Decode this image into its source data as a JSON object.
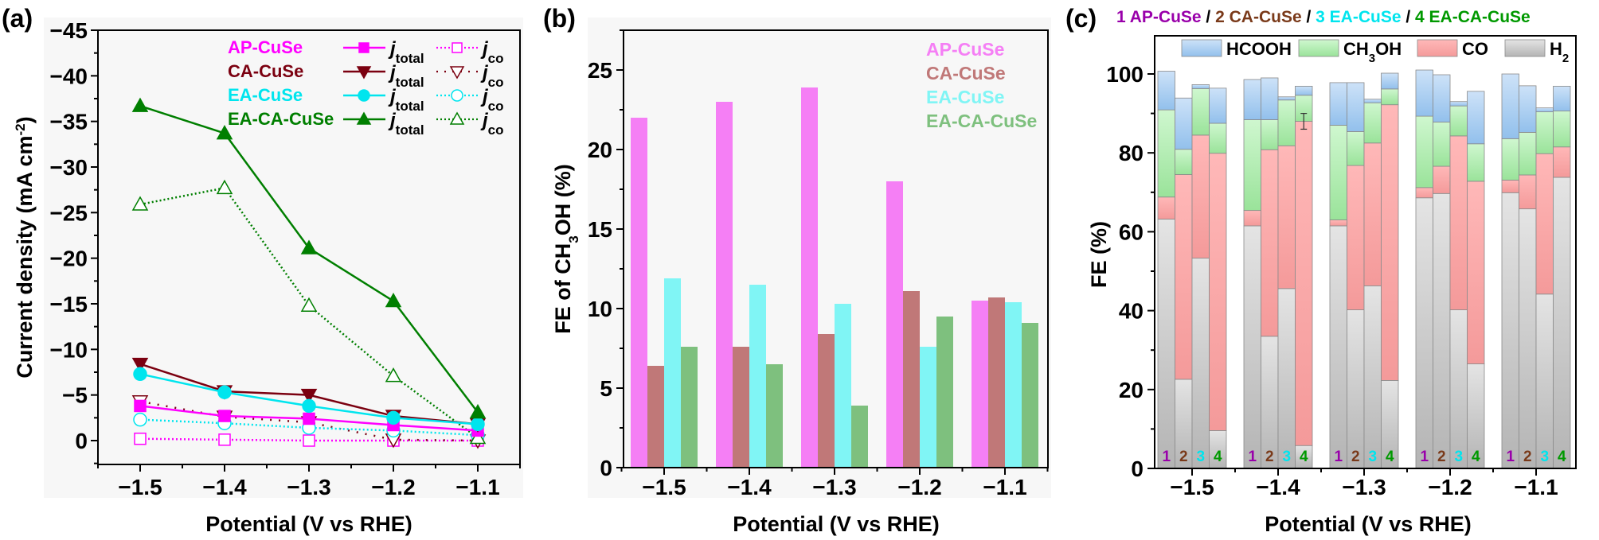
{
  "colors": {
    "ap": "#ff00ff",
    "ca": "#7b0010",
    "ea": "#00e5ee",
    "eaca": "#007f00",
    "bar_ap": "#f57ff5",
    "bar_ca": "#c07878",
    "bar_ea": "#80f5f5",
    "bar_eaca": "#7ec07e",
    "label_1": "#9900aa",
    "label_2": "#7a3a1a",
    "label_3": "#00e5ee",
    "label_4": "#009900"
  },
  "chart_data": [
    {
      "panel": "(a)",
      "type": "line",
      "xlabel": "Potential (V vs RHE)",
      "ylabel": "Current density (mA cm⁻²)",
      "ylabel_main": "Current density (mA cm",
      "ylabel_sup": "-2",
      "ylabel_end": ")",
      "x": [
        -1.5,
        -1.4,
        -1.3,
        -1.2,
        -1.1
      ],
      "xticks": [
        "−1.5",
        "−1.4",
        "−1.3",
        "−1.2",
        "−1.1"
      ],
      "xlim": [
        -1.55,
        -1.05
      ],
      "ylim": [
        -45,
        0
      ],
      "yaxis_inverted": true,
      "yticks": [
        "−45",
        "−40",
        "−35",
        "−30",
        "−25",
        "−20",
        "−15",
        "−10",
        "−5",
        "0"
      ],
      "ytick_values": [
        -45,
        -40,
        -35,
        -30,
        -25,
        -20,
        -15,
        -10,
        -5,
        0
      ],
      "legend_samples": [
        "AP-CuSe",
        "CA-CuSe",
        "EA-CuSe",
        "EA-CA-CuSe"
      ],
      "legend_total": "total",
      "legend_co": "co",
      "legend_j": "j",
      "series": [
        {
          "name": "AP-CuSe j_total",
          "sample": "ap",
          "kind": "total",
          "marker": "square",
          "values": [
            -3.8,
            -2.7,
            -2.4,
            -1.7,
            -1.1
          ]
        },
        {
          "name": "AP-CuSe j_co",
          "sample": "ap",
          "kind": "co",
          "marker": "square",
          "values": [
            -0.2,
            -0.1,
            0.0,
            0.0,
            0.0
          ]
        },
        {
          "name": "CA-CuSe j_total",
          "sample": "ca",
          "kind": "total",
          "marker": "tri-down",
          "values": [
            -8.4,
            -5.4,
            -5.0,
            -2.7,
            -1.8
          ]
        },
        {
          "name": "CA-CuSe j_co",
          "sample": "ca",
          "kind": "co",
          "marker": "tri-down",
          "values": [
            -4.3,
            -2.6,
            -2.0,
            -0.1,
            0.0
          ]
        },
        {
          "name": "EA-CuSe j_total",
          "sample": "ea",
          "kind": "total",
          "marker": "circle",
          "values": [
            -7.3,
            -5.3,
            -3.8,
            -2.5,
            -1.8
          ]
        },
        {
          "name": "EA-CuSe j_co",
          "sample": "ea",
          "kind": "co",
          "marker": "circle",
          "values": [
            -2.3,
            -1.9,
            -1.4,
            -1.1,
            -0.6
          ]
        },
        {
          "name": "EA-CA-CuSe j_total",
          "sample": "eaca",
          "kind": "total",
          "marker": "tri-up",
          "values": [
            -36.7,
            -33.7,
            -21.1,
            -15.3,
            -3.1
          ]
        },
        {
          "name": "EA-CA-CuSe j_co",
          "sample": "eaca",
          "kind": "co",
          "marker": "tri-up",
          "values": [
            -25.9,
            -27.7,
            -14.8,
            -7.1,
            -0.3
          ]
        }
      ]
    },
    {
      "panel": "(b)",
      "type": "bar",
      "xlabel": "Potential (V vs RHE)",
      "ylabel_pre": "FE of CH",
      "ylabel_sub": "3",
      "ylabel_post": "OH  (%)",
      "categories": [
        "−1.5",
        "−1.4",
        "−1.3",
        "−1.2",
        "−1.1"
      ],
      "ylim": [
        0,
        27.5
      ],
      "yticks": [
        "0",
        "5",
        "10",
        "15",
        "20",
        "25"
      ],
      "ytick_values": [
        0,
        5,
        10,
        15,
        20,
        25
      ],
      "legend": [
        "AP-CuSe",
        "CA-CuSe",
        "EA-CuSe",
        "EA-CA-CuSe"
      ],
      "series": [
        {
          "name": "AP-CuSe",
          "key": "ap",
          "values": [
            22.0,
            23.0,
            23.9,
            18.0,
            10.5
          ]
        },
        {
          "name": "CA-CuSe",
          "key": "ca",
          "values": [
            6.4,
            7.6,
            8.4,
            11.1,
            10.7
          ]
        },
        {
          "name": "EA-CuSe",
          "key": "ea",
          "values": [
            11.9,
            11.5,
            10.3,
            7.6,
            10.4
          ]
        },
        {
          "name": "EA-CA-CuSe",
          "key": "eaca",
          "values": [
            7.6,
            6.5,
            3.9,
            9.5,
            9.1
          ]
        }
      ]
    },
    {
      "panel": "(c)",
      "type": "bar",
      "stacked": true,
      "xlabel": "Potential (V vs RHE)",
      "ylabel": "FE (%)",
      "categories": [
        "−1.5",
        "−1.4",
        "−1.3",
        "−1.2",
        "−1.1"
      ],
      "ylim": [
        0,
        109
      ],
      "yticks": [
        "0",
        "20",
        "40",
        "60",
        "80",
        "100"
      ],
      "ytick_values": [
        0,
        20,
        40,
        60,
        80,
        100
      ],
      "header": [
        {
          "text": "1 AP-CuSe",
          "key": "label_1"
        },
        {
          "text": " / ",
          "key": "black"
        },
        {
          "text": "2 CA-CuSe",
          "key": "label_2"
        },
        {
          "text": " / ",
          "key": "black"
        },
        {
          "text": "3 EA-CuSe",
          "key": "label_3"
        },
        {
          "text": " / ",
          "key": "black"
        },
        {
          "text": "4 EA-CA-CuSe",
          "key": "label_4"
        }
      ],
      "sample_labels": [
        "1",
        "2",
        "3",
        "4"
      ],
      "legend": [
        {
          "name": "HCOOH",
          "key": "hcooh"
        },
        {
          "name": "CH3OH",
          "key": "ch3oh",
          "main": "CH",
          "sub": "3",
          "post": "OH"
        },
        {
          "name": "CO",
          "key": "co"
        },
        {
          "name": "H2",
          "key": "h2",
          "main": "H",
          "sub": "2"
        }
      ],
      "products": [
        "H2",
        "CO",
        "CH3OH",
        "HCOOH"
      ],
      "groups": [
        {
          "potential": "−1.5",
          "samples": [
            {
              "H2": 63.2,
              "CO": 5.6,
              "CH3OH": 22.1,
              "HCOOH": 9.8
            },
            {
              "H2": 22.6,
              "CO": 51.9,
              "CH3OH": 6.4,
              "HCOOH": 13.0
            },
            {
              "H2": 53.3,
              "CO": 31.2,
              "CH3OH": 11.8,
              "HCOOH": 1.0
            },
            {
              "H2": 9.6,
              "CO": 70.3,
              "CH3OH": 7.6,
              "HCOOH": 8.9
            }
          ]
        },
        {
          "potential": "−1.4",
          "samples": [
            {
              "H2": 61.5,
              "CO": 3.9,
              "CH3OH": 23.0,
              "HCOOH": 10.2
            },
            {
              "H2": 33.5,
              "CO": 47.3,
              "CH3OH": 7.6,
              "HCOOH": 10.6
            },
            {
              "H2": 45.6,
              "CO": 36.2,
              "CH3OH": 11.6,
              "HCOOH": 0.8
            },
            {
              "H2": 5.8,
              "CO": 82.2,
              "CH3OH": 6.6,
              "HCOOH": 2.3
            }
          ]
        },
        {
          "potential": "−1.3",
          "samples": [
            {
              "H2": 61.5,
              "CO": 1.5,
              "CH3OH": 24.0,
              "HCOOH": 10.8
            },
            {
              "H2": 40.2,
              "CO": 36.6,
              "CH3OH": 8.6,
              "HCOOH": 12.4
            },
            {
              "H2": 46.3,
              "CO": 36.2,
              "CH3OH": 10.2,
              "HCOOH": 0.9
            },
            {
              "H2": 22.3,
              "CO": 69.9,
              "CH3OH": 4.0,
              "HCOOH": 4.0
            }
          ]
        },
        {
          "potential": "−1.2",
          "samples": [
            {
              "H2": 68.6,
              "CO": 2.6,
              "CH3OH": 18.1,
              "HCOOH": 11.7
            },
            {
              "H2": 69.7,
              "CO": 6.9,
              "CH3OH": 11.2,
              "HCOOH": 12.0
            },
            {
              "H2": 40.2,
              "CO": 44.1,
              "CH3OH": 7.6,
              "HCOOH": 1.1
            },
            {
              "H2": 26.5,
              "CO": 46.3,
              "CH3OH": 9.5,
              "HCOOH": 13.3
            }
          ]
        },
        {
          "potential": "−1.1",
          "samples": [
            {
              "H2": 69.9,
              "CO": 3.2,
              "CH3OH": 10.5,
              "HCOOH": 16.4
            },
            {
              "H2": 65.8,
              "CO": 8.6,
              "CH3OH": 10.8,
              "HCOOH": 11.8
            },
            {
              "H2": 44.2,
              "CO": 35.6,
              "CH3OH": 10.6,
              "HCOOH": 1.0
            },
            {
              "H2": 73.8,
              "CO": 7.7,
              "CH3OH": 9.1,
              "HCOOH": 6.3
            }
          ]
        }
      ],
      "error_bar": {
        "group": 1,
        "sample": 3,
        "center": 88.0,
        "half_range": 2.0
      }
    }
  ],
  "panel_labels": [
    "(a)",
    "(b)",
    "(c)"
  ]
}
